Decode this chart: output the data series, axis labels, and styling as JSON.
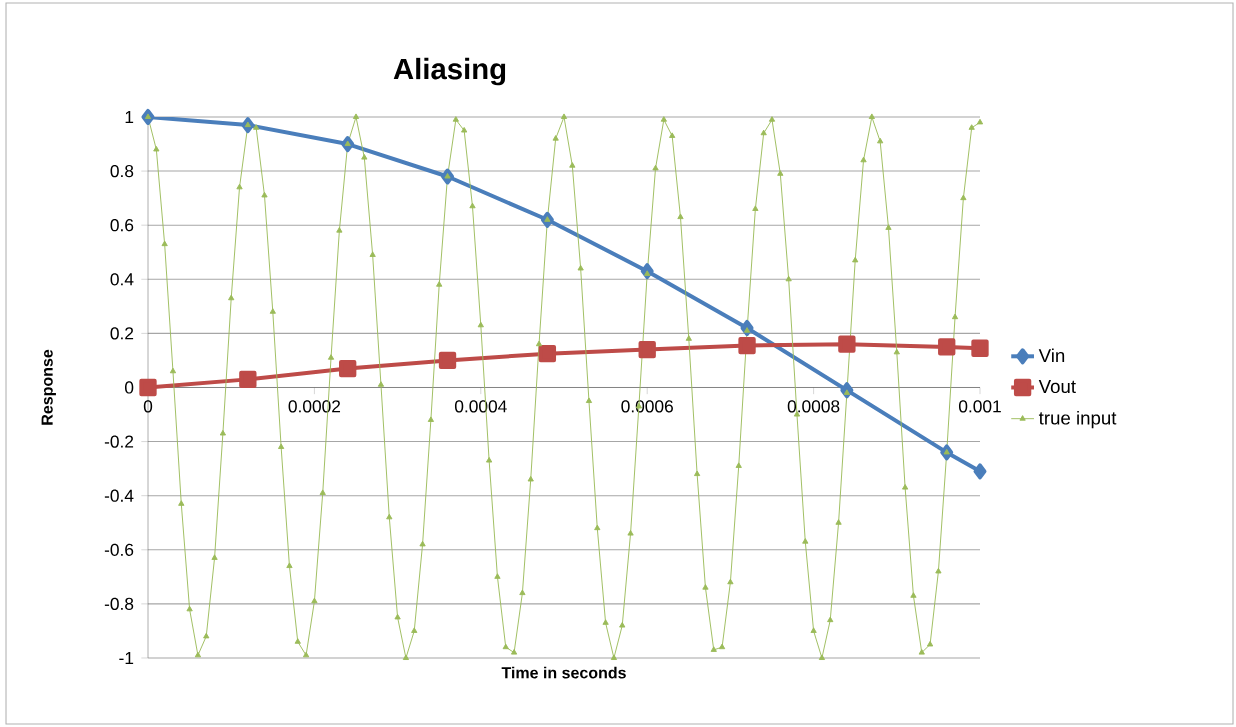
{
  "chart_data": {
    "type": "line",
    "title": "Aliasing",
    "xlabel": "Time in seconds",
    "ylabel": "Response",
    "xlim": [
      0,
      0.001
    ],
    "xticks": [
      0,
      0.0002,
      0.0004,
      0.0006,
      0.0008,
      0.001
    ],
    "ylim": [
      -1,
      1
    ],
    "yticks": [
      -1,
      -0.8,
      -0.6,
      -0.4,
      -0.2,
      0,
      0.2,
      0.4,
      0.6,
      0.8,
      1
    ],
    "grid": "y",
    "legend": "right",
    "series": [
      {
        "name": "Vin",
        "color": "#4a7ebb",
        "marker": "diamond",
        "x": [
          0,
          0.00012,
          0.00024,
          0.00036,
          0.00048,
          0.0006,
          0.00072,
          0.00084,
          0.00096,
          0.001
        ],
        "values": [
          1,
          0.97,
          0.9,
          0.78,
          0.62,
          0.43,
          0.22,
          -0.01,
          -0.24,
          -0.31
        ]
      },
      {
        "name": "Vout",
        "color": "#be4b48",
        "marker": "square",
        "x": [
          0,
          0.00012,
          0.00024,
          0.00036,
          0.00048,
          0.0006,
          0.00072,
          0.00084,
          0.00096,
          0.001
        ],
        "values": [
          0,
          0.03,
          0.07,
          0.1,
          0.125,
          0.14,
          0.155,
          0.16,
          0.15,
          0.145
        ]
      },
      {
        "name": "true input",
        "color": "#9bbb59",
        "marker": "triangle",
        "x": [
          0,
          1e-05,
          2e-05,
          3e-05,
          4e-05,
          5e-05,
          6e-05,
          7e-05,
          8e-05,
          9e-05,
          0.0001,
          0.00011,
          0.00012,
          0.00013,
          0.00014,
          0.00015,
          0.00016,
          0.00017,
          0.00018,
          0.00019,
          0.0002,
          0.00021,
          0.00022,
          0.00023,
          0.00024,
          0.00025,
          0.00026,
          0.00027,
          0.00028,
          0.00029,
          0.0003,
          0.00031,
          0.00032,
          0.00033,
          0.00034,
          0.00035,
          0.00036,
          0.00037,
          0.00038,
          0.00039,
          0.0004,
          0.00041,
          0.00042,
          0.00043,
          0.00044,
          0.00045,
          0.00046,
          0.00047,
          0.00048,
          0.00049,
          0.0005,
          0.00051,
          0.00052,
          0.00053,
          0.00054,
          0.00055,
          0.00056,
          0.00057,
          0.00058,
          0.00059,
          0.0006,
          0.00061,
          0.00062,
          0.00063,
          0.00064,
          0.00065,
          0.00066,
          0.00067,
          0.00068,
          0.00069,
          0.0007,
          0.00071,
          0.00072,
          0.00073,
          0.00074,
          0.00075,
          0.00076,
          0.00077,
          0.00078,
          0.00079,
          0.0008,
          0.00081,
          0.00082,
          0.00083,
          0.00084,
          0.00085,
          0.00086,
          0.00087,
          0.00088,
          0.00089,
          0.0009,
          0.00091,
          0.00092,
          0.00093,
          0.00094,
          0.00095,
          0.00096,
          0.00097,
          0.00098,
          0.00099,
          0.001
        ],
        "values": [
          1,
          0.88,
          0.53,
          0.06,
          -0.43,
          -0.82,
          -0.99,
          -0.92,
          -0.63,
          -0.17,
          0.33,
          0.74,
          0.97,
          0.96,
          0.71,
          0.28,
          -0.22,
          -0.66,
          -0.94,
          -0.99,
          -0.79,
          -0.39,
          0.11,
          0.58,
          0.9,
          1,
          0.85,
          0.49,
          0.01,
          -0.48,
          -0.85,
          -1,
          -0.9,
          -0.58,
          -0.12,
          0.38,
          0.78,
          0.99,
          0.95,
          0.67,
          0.23,
          -0.27,
          -0.7,
          -0.96,
          -0.98,
          -0.76,
          -0.34,
          0.16,
          0.62,
          0.92,
          1,
          0.82,
          0.44,
          -0.05,
          -0.52,
          -0.87,
          -1,
          -0.88,
          -0.54,
          -0.07,
          0.42,
          0.81,
          0.99,
          0.93,
          0.63,
          0.18,
          -0.32,
          -0.74,
          -0.97,
          -0.96,
          -0.72,
          -0.29,
          0.21,
          0.66,
          0.94,
          0.99,
          0.79,
          0.4,
          -0.1,
          -0.57,
          -0.9,
          -1,
          -0.86,
          -0.5,
          -0.02,
          0.47,
          0.84,
          1,
          0.91,
          0.59,
          0.13,
          -0.37,
          -0.77,
          -0.98,
          -0.95,
          -0.68,
          -0.24,
          0.26,
          0.7,
          0.96,
          0.98
        ]
      }
    ]
  }
}
